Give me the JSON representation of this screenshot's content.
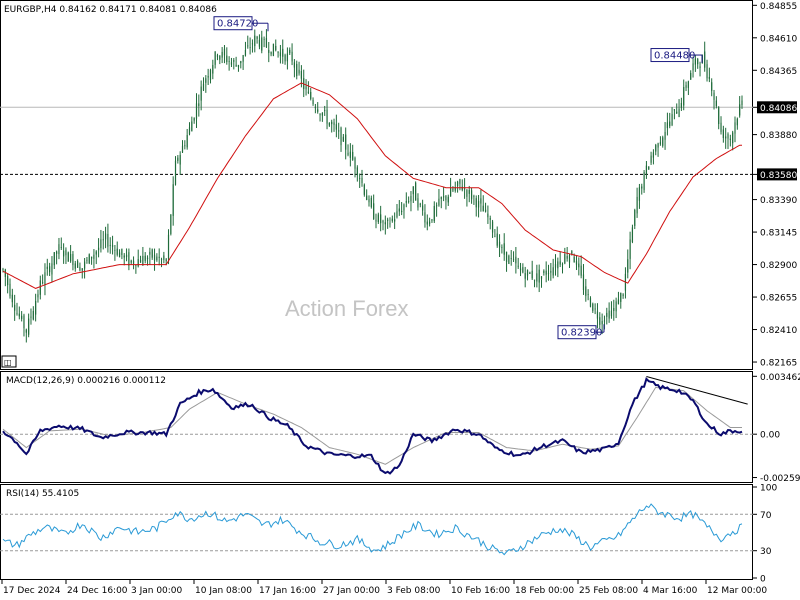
{
  "header": {
    "symbol": "EURGBP,H4",
    "ohlc": "0.84162 0.84171 0.84081 0.84086",
    "macd": "MACD(12,26,9) 0.000216 0.000112",
    "rsi": "RSI(14) 55.4105"
  },
  "watermark": "Action Forex",
  "colors": {
    "candle": "#1f6b3a",
    "ma": "#d01010",
    "macd": "#0b0b6e",
    "signal": "#9a9a9a",
    "rsi": "#2a9ad6",
    "tag_bg": "#000000",
    "callout_border": "#1a1a80"
  },
  "chart_data": {
    "type": "candlestick",
    "price_axis": {
      "labels": [
        "0.84855",
        "0.84610",
        "0.84365",
        "0.84086",
        "0.83880",
        "0.83580",
        "0.83390",
        "0.83145",
        "0.82900",
        "0.82655",
        "0.82410",
        "0.82165"
      ],
      "values": [
        0.84855,
        0.8461,
        0.84365,
        0.84086,
        0.8388,
        0.8358,
        0.8339,
        0.83145,
        0.829,
        0.82655,
        0.8241,
        0.82165
      ],
      "range": [
        0.8212,
        0.8488
      ]
    },
    "time_labels": [
      "17 Dec 2024",
      "24 Dec 16:00",
      "3 Jan 00:00",
      "10 Jan 08:00",
      "17 Jan 16:00",
      "27 Jan 00:00",
      "3 Feb 08:00",
      "10 Feb 16:00",
      "18 Feb 00:00",
      "25 Feb 08:00",
      "4 Mar 16:00",
      "12 Mar 00:00"
    ],
    "current_price": {
      "value": 0.84086,
      "label": "0.84086"
    },
    "level_line": {
      "value": 0.8358,
      "label": "0.83580",
      "style": "dashed"
    },
    "callouts": [
      {
        "label": "0.84720",
        "value": 0.8472
      },
      {
        "label": "0.84480",
        "value": 0.8448
      },
      {
        "label": "0.82390",
        "value": 0.8239
      }
    ],
    "close_path": [
      {
        "i": 0,
        "v": 0.8286
      },
      {
        "i": 6,
        "v": 0.8254
      },
      {
        "i": 10,
        "v": 0.824
      },
      {
        "i": 16,
        "v": 0.8275
      },
      {
        "i": 24,
        "v": 0.8302
      },
      {
        "i": 34,
        "v": 0.8288
      },
      {
        "i": 44,
        "v": 0.8309
      },
      {
        "i": 54,
        "v": 0.8292
      },
      {
        "i": 64,
        "v": 0.8296
      },
      {
        "i": 70,
        "v": 0.8292
      },
      {
        "i": 74,
        "v": 0.8365
      },
      {
        "i": 80,
        "v": 0.8392
      },
      {
        "i": 86,
        "v": 0.8428
      },
      {
        "i": 92,
        "v": 0.845
      },
      {
        "i": 100,
        "v": 0.844
      },
      {
        "i": 108,
        "v": 0.846
      },
      {
        "i": 116,
        "v": 0.8452
      },
      {
        "i": 124,
        "v": 0.8445
      },
      {
        "i": 130,
        "v": 0.842
      },
      {
        "i": 138,
        "v": 0.8402
      },
      {
        "i": 146,
        "v": 0.8382
      },
      {
        "i": 152,
        "v": 0.8362
      },
      {
        "i": 158,
        "v": 0.833
      },
      {
        "i": 164,
        "v": 0.8318
      },
      {
        "i": 170,
        "v": 0.833
      },
      {
        "i": 176,
        "v": 0.8345
      },
      {
        "i": 182,
        "v": 0.8322
      },
      {
        "i": 188,
        "v": 0.8338
      },
      {
        "i": 196,
        "v": 0.835
      },
      {
        "i": 202,
        "v": 0.834
      },
      {
        "i": 208,
        "v": 0.8325
      },
      {
        "i": 214,
        "v": 0.83
      },
      {
        "i": 222,
        "v": 0.8285
      },
      {
        "i": 230,
        "v": 0.828
      },
      {
        "i": 238,
        "v": 0.8292
      },
      {
        "i": 244,
        "v": 0.83
      },
      {
        "i": 250,
        "v": 0.8268
      },
      {
        "i": 256,
        "v": 0.8249
      },
      {
        "i": 262,
        "v": 0.8256
      },
      {
        "i": 266,
        "v": 0.827
      },
      {
        "i": 272,
        "v": 0.834
      },
      {
        "i": 278,
        "v": 0.8372
      },
      {
        "i": 284,
        "v": 0.8392
      },
      {
        "i": 290,
        "v": 0.841
      },
      {
        "i": 296,
        "v": 0.844
      },
      {
        "i": 300,
        "v": 0.8445
      },
      {
        "i": 304,
        "v": 0.8425
      },
      {
        "i": 308,
        "v": 0.839
      },
      {
        "i": 312,
        "v": 0.8385
      },
      {
        "i": 316,
        "v": 0.8409
      }
    ],
    "ma_path": [
      {
        "i": 0,
        "v": 0.8285
      },
      {
        "i": 14,
        "v": 0.8272
      },
      {
        "i": 30,
        "v": 0.8283
      },
      {
        "i": 50,
        "v": 0.829
      },
      {
        "i": 70,
        "v": 0.829
      },
      {
        "i": 80,
        "v": 0.8318
      },
      {
        "i": 92,
        "v": 0.8355
      },
      {
        "i": 104,
        "v": 0.8387
      },
      {
        "i": 116,
        "v": 0.8415
      },
      {
        "i": 128,
        "v": 0.8427
      },
      {
        "i": 140,
        "v": 0.8418
      },
      {
        "i": 152,
        "v": 0.84
      },
      {
        "i": 164,
        "v": 0.8372
      },
      {
        "i": 176,
        "v": 0.8355
      },
      {
        "i": 190,
        "v": 0.8348
      },
      {
        "i": 204,
        "v": 0.8348
      },
      {
        "i": 214,
        "v": 0.8336
      },
      {
        "i": 224,
        "v": 0.8316
      },
      {
        "i": 236,
        "v": 0.8301
      },
      {
        "i": 248,
        "v": 0.8296
      },
      {
        "i": 258,
        "v": 0.8284
      },
      {
        "i": 268,
        "v": 0.8276
      },
      {
        "i": 276,
        "v": 0.8298
      },
      {
        "i": 286,
        "v": 0.833
      },
      {
        "i": 296,
        "v": 0.8356
      },
      {
        "i": 306,
        "v": 0.837
      },
      {
        "i": 316,
        "v": 0.838
      }
    ],
    "macd": {
      "axis_labels": [
        "0.003462",
        "0.00",
        "-0.002593"
      ],
      "values": [
        0.003462,
        0.0,
        -0.002593
      ],
      "range": [
        -0.0028,
        0.0036
      ],
      "main_path": [
        {
          "i": 0,
          "v": 0.0002
        },
        {
          "i": 6,
          "v": -0.0005
        },
        {
          "i": 10,
          "v": -0.0012
        },
        {
          "i": 16,
          "v": 0.0002
        },
        {
          "i": 24,
          "v": 0.0005
        },
        {
          "i": 34,
          "v": 0.0003
        },
        {
          "i": 42,
          "v": -0.0002
        },
        {
          "i": 52,
          "v": 0.0001
        },
        {
          "i": 64,
          "v": 0.0001
        },
        {
          "i": 70,
          "v": 0.0
        },
        {
          "i": 76,
          "v": 0.0018
        },
        {
          "i": 84,
          "v": 0.0025
        },
        {
          "i": 90,
          "v": 0.0027
        },
        {
          "i": 98,
          "v": 0.0016
        },
        {
          "i": 106,
          "v": 0.0018
        },
        {
          "i": 114,
          "v": 0.001
        },
        {
          "i": 122,
          "v": 0.0005
        },
        {
          "i": 130,
          "v": -0.0007
        },
        {
          "i": 140,
          "v": -0.0012
        },
        {
          "i": 150,
          "v": -0.0013
        },
        {
          "i": 158,
          "v": -0.0013
        },
        {
          "i": 164,
          "v": -0.0024
        },
        {
          "i": 170,
          "v": -0.0019
        },
        {
          "i": 176,
          "v": 0.0
        },
        {
          "i": 184,
          "v": -0.0004
        },
        {
          "i": 194,
          "v": 0.0003
        },
        {
          "i": 204,
          "v": 0.0
        },
        {
          "i": 212,
          "v": -0.0009
        },
        {
          "i": 222,
          "v": -0.0013
        },
        {
          "i": 232,
          "v": -0.0007
        },
        {
          "i": 240,
          "v": -0.0004
        },
        {
          "i": 248,
          "v": -0.0011
        },
        {
          "i": 258,
          "v": -0.0009
        },
        {
          "i": 264,
          "v": -0.0005
        },
        {
          "i": 270,
          "v": 0.0018
        },
        {
          "i": 276,
          "v": 0.0032
        },
        {
          "i": 282,
          "v": 0.0028
        },
        {
          "i": 290,
          "v": 0.0026
        },
        {
          "i": 296,
          "v": 0.002
        },
        {
          "i": 302,
          "v": 0.0006
        },
        {
          "i": 308,
          "v": 0.0
        },
        {
          "i": 312,
          "v": 0.0002
        }
      ],
      "signal_path": [
        {
          "i": 0,
          "v": 0.0003
        },
        {
          "i": 10,
          "v": -0.0008
        },
        {
          "i": 20,
          "v": 0.0002
        },
        {
          "i": 34,
          "v": 0.0003
        },
        {
          "i": 46,
          "v": -0.0001
        },
        {
          "i": 60,
          "v": 0.0001
        },
        {
          "i": 72,
          "v": 0.0004
        },
        {
          "i": 80,
          "v": 0.0015
        },
        {
          "i": 92,
          "v": 0.0025
        },
        {
          "i": 104,
          "v": 0.0018
        },
        {
          "i": 116,
          "v": 0.0012
        },
        {
          "i": 128,
          "v": 0.0004
        },
        {
          "i": 140,
          "v": -0.0008
        },
        {
          "i": 152,
          "v": -0.0012
        },
        {
          "i": 164,
          "v": -0.0018
        },
        {
          "i": 176,
          "v": -0.0008
        },
        {
          "i": 190,
          "v": 0.0001
        },
        {
          "i": 204,
          "v": 0.0001
        },
        {
          "i": 216,
          "v": -0.0008
        },
        {
          "i": 228,
          "v": -0.001
        },
        {
          "i": 240,
          "v": -0.0006
        },
        {
          "i": 252,
          "v": -0.0009
        },
        {
          "i": 264,
          "v": -0.0007
        },
        {
          "i": 272,
          "v": 0.001
        },
        {
          "i": 280,
          "v": 0.0028
        },
        {
          "i": 292,
          "v": 0.0026
        },
        {
          "i": 302,
          "v": 0.0014
        },
        {
          "i": 312,
          "v": 0.0004
        }
      ],
      "trendline": [
        {
          "i": 276,
          "v": 0.00345
        },
        {
          "i": 316,
          "v": 0.0018
        }
      ]
    },
    "rsi": {
      "axis_labels": [
        "100",
        "70",
        "30",
        "0"
      ],
      "values": [
        100,
        70,
        30,
        0
      ],
      "range": [
        0,
        100
      ],
      "levels": [
        70,
        30
      ],
      "path": [
        {
          "i": 0,
          "v": 40
        },
        {
          "i": 6,
          "v": 36
        },
        {
          "i": 12,
          "v": 48
        },
        {
          "i": 18,
          "v": 56
        },
        {
          "i": 26,
          "v": 48
        },
        {
          "i": 34,
          "v": 60
        },
        {
          "i": 42,
          "v": 44
        },
        {
          "i": 50,
          "v": 56
        },
        {
          "i": 58,
          "v": 50
        },
        {
          "i": 66,
          "v": 55
        },
        {
          "i": 74,
          "v": 72
        },
        {
          "i": 80,
          "v": 65
        },
        {
          "i": 88,
          "v": 72
        },
        {
          "i": 96,
          "v": 62
        },
        {
          "i": 104,
          "v": 70
        },
        {
          "i": 112,
          "v": 58
        },
        {
          "i": 120,
          "v": 64
        },
        {
          "i": 128,
          "v": 50
        },
        {
          "i": 136,
          "v": 40
        },
        {
          "i": 144,
          "v": 36
        },
        {
          "i": 152,
          "v": 42
        },
        {
          "i": 160,
          "v": 30
        },
        {
          "i": 166,
          "v": 38
        },
        {
          "i": 172,
          "v": 50
        },
        {
          "i": 178,
          "v": 58
        },
        {
          "i": 186,
          "v": 48
        },
        {
          "i": 194,
          "v": 55
        },
        {
          "i": 202,
          "v": 44
        },
        {
          "i": 210,
          "v": 32
        },
        {
          "i": 216,
          "v": 26
        },
        {
          "i": 222,
          "v": 34
        },
        {
          "i": 230,
          "v": 46
        },
        {
          "i": 238,
          "v": 54
        },
        {
          "i": 244,
          "v": 48
        },
        {
          "i": 252,
          "v": 34
        },
        {
          "i": 258,
          "v": 40
        },
        {
          "i": 264,
          "v": 46
        },
        {
          "i": 270,
          "v": 64
        },
        {
          "i": 276,
          "v": 80
        },
        {
          "i": 282,
          "v": 72
        },
        {
          "i": 290,
          "v": 66
        },
        {
          "i": 296,
          "v": 70
        },
        {
          "i": 302,
          "v": 56
        },
        {
          "i": 308,
          "v": 44
        },
        {
          "i": 316,
          "v": 55
        }
      ]
    }
  }
}
